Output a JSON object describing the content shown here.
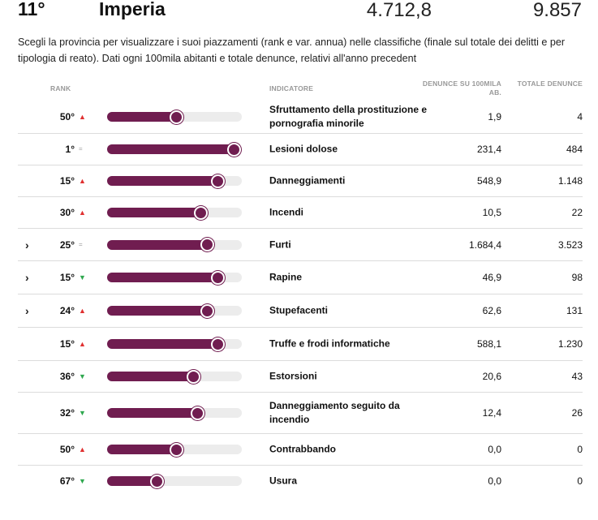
{
  "header": {
    "rank": "11°",
    "province": "Imperia",
    "value1": "4.712,8",
    "value2": "9.857"
  },
  "intro": "Scegli la provincia per visualizzare i suoi piazzamenti (rank e var. annua) nelle classifiche (finale sul totale dei delitti e per tipologia di reato). Dati ogni 100mila abitanti e totale denunce, relativi all'anno precedent",
  "columns": {
    "rank": "RANK",
    "indicator": "INDICATORE",
    "denunce_100k": "DENUNCE SU 100MILA AB.",
    "totale": "TOTALE DENUNCE"
  },
  "colors": {
    "bar": "#701d50",
    "track": "#ececec",
    "up": "#e03030",
    "down": "#2fa84f"
  },
  "rows": [
    {
      "rank": "50°",
      "change": "up",
      "symbol": "▲",
      "level": 0.51,
      "label": "Sfruttamento della prostituzione e pornografia minorile",
      "den": "1,9",
      "tot": "4",
      "expand": "",
      "h": 41
    },
    {
      "rank": "1°",
      "change": "eq",
      "symbol": "=",
      "level": 0.94,
      "label": "Lesioni dolose",
      "den": "231,4",
      "tot": "484",
      "expand": "",
      "h": 39
    },
    {
      "rank": "15°",
      "change": "up",
      "symbol": "▲",
      "level": 0.82,
      "label": "Danneggiamenti",
      "den": "548,9",
      "tot": "1.148",
      "expand": "",
      "h": 39
    },
    {
      "rank": "30°",
      "change": "up",
      "symbol": "▲",
      "level": 0.69,
      "label": "Incendi",
      "den": "10,5",
      "tot": "22",
      "expand": "",
      "h": 39
    },
    {
      "rank": "25°",
      "change": "eq",
      "symbol": "=",
      "level": 0.74,
      "label": "Furti",
      "den": "1.684,4",
      "tot": "3.523",
      "expand": "›",
      "h": 40
    },
    {
      "rank": "15°",
      "change": "down",
      "symbol": "▼",
      "level": 0.82,
      "label": "Rapine",
      "den": "46,9",
      "tot": "98",
      "expand": "›",
      "h": 41
    },
    {
      "rank": "24°",
      "change": "up",
      "symbol": "▲",
      "level": 0.74,
      "label": "Stupefacenti",
      "den": "62,6",
      "tot": "131",
      "expand": "›",
      "h": 41
    },
    {
      "rank": "15°",
      "change": "up",
      "symbol": "▲",
      "level": 0.82,
      "label": "Truffe e frodi informatiche",
      "den": "588,1",
      "tot": "1.230",
      "expand": "",
      "h": 41
    },
    {
      "rank": "36°",
      "change": "down",
      "symbol": "▼",
      "level": 0.64,
      "label": "Estorsioni",
      "den": "20,6",
      "tot": "43",
      "expand": "",
      "h": 39
    },
    {
      "rank": "32°",
      "change": "down",
      "symbol": "▼",
      "level": 0.67,
      "label": "Danneggiamento seguito da incendio",
      "den": "12,4",
      "tot": "26",
      "expand": "",
      "h": 51
    },
    {
      "rank": "50°",
      "change": "up",
      "symbol": "▲",
      "level": 0.51,
      "label": "Contrabbando",
      "den": "0,0",
      "tot": "0",
      "expand": "",
      "h": 39
    },
    {
      "rank": "67°",
      "change": "down",
      "symbol": "▼",
      "level": 0.37,
      "label": "Usura",
      "den": "0,0",
      "tot": "0",
      "expand": "",
      "h": 38
    }
  ]
}
